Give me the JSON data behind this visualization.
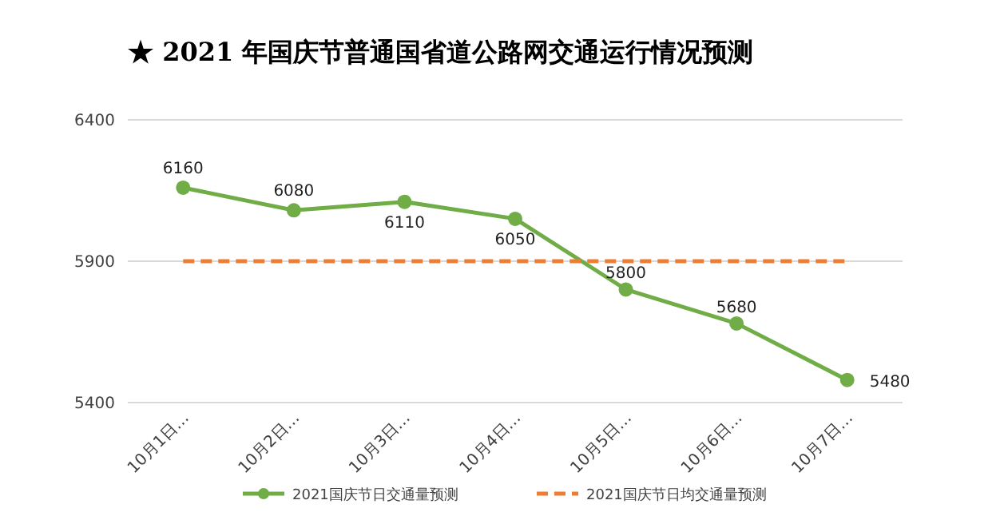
{
  "chart_data": {
    "type": "line",
    "title": "★ 2021 年国庆节普通国省道公路网交通运行情况预测",
    "categories": [
      "10月1日…",
      "10月2日…",
      "10月3日…",
      "10月4日…",
      "10月5日…",
      "10月6日…",
      "10月7日…"
    ],
    "series": [
      {
        "name": "2021国庆节日交通量预测",
        "color": "#70ad47",
        "values": [
          6160,
          6080,
          6110,
          6050,
          5800,
          5680,
          5480
        ],
        "value_labels": [
          "6160",
          "6080",
          "6110",
          "6050",
          "5800",
          "5680",
          "5480"
        ],
        "marker": "circle",
        "line_style": "solid"
      },
      {
        "name": "2021国庆节日均交通量预测",
        "color": "#ed7d31",
        "values": [
          5900,
          5900,
          5900,
          5900,
          5900,
          5900,
          5900
        ],
        "marker": "none",
        "line_style": "dashed"
      }
    ],
    "ylim": [
      5400,
      6400
    ],
    "yticks": [
      5400,
      5900,
      6400
    ],
    "grid": "y",
    "legend": "bottom"
  }
}
